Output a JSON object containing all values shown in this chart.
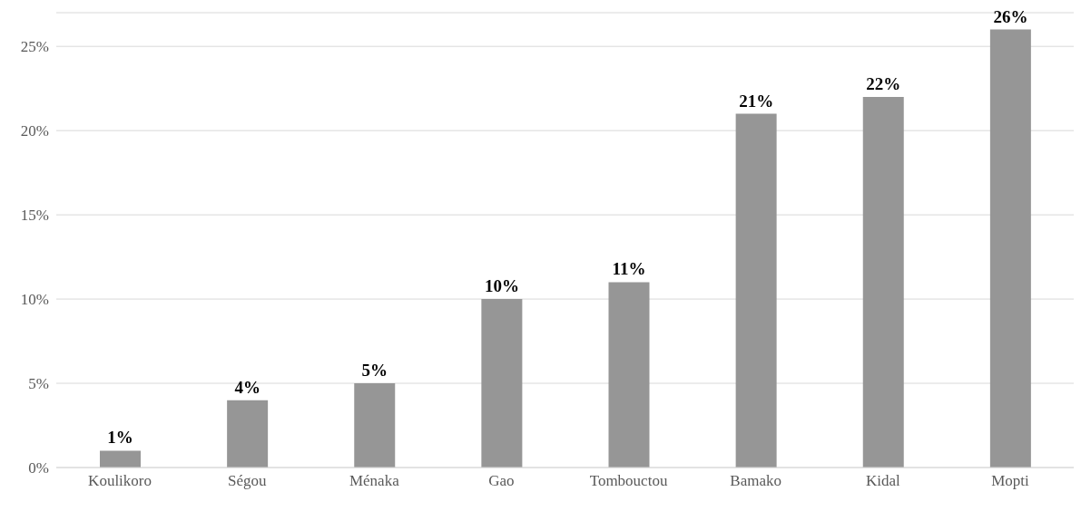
{
  "chart_data": {
    "type": "bar",
    "categories": [
      "Koulikoro",
      "Ségou",
      "Ménaka",
      "Gao",
      "Tombouctou",
      "Bamako",
      "Kidal",
      "Mopti"
    ],
    "values": [
      1,
      4,
      5,
      10,
      11,
      21,
      22,
      26
    ],
    "value_labels": [
      "1%",
      "4%",
      "5%",
      "10%",
      "11%",
      "21%",
      "22%",
      "26%"
    ],
    "color": "#969696",
    "ylim": [
      0,
      27
    ],
    "yticks": [
      {
        "value": 0,
        "label": "0%"
      },
      {
        "value": 5,
        "label": "5%"
      },
      {
        "value": 10,
        "label": "10%"
      },
      {
        "value": 15,
        "label": "15%"
      },
      {
        "value": 20,
        "label": "20%"
      },
      {
        "value": 25,
        "label": "25%"
      }
    ],
    "grid": "y"
  }
}
